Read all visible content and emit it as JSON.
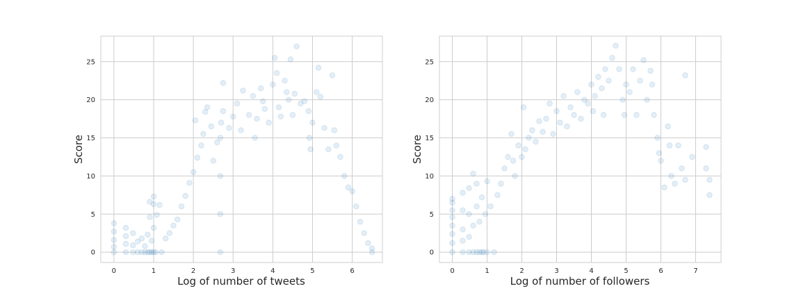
{
  "chart_data": [
    {
      "type": "scatter",
      "xlabel": "Log of number of tweets",
      "ylabel": "Score",
      "xlim": [
        -0.33,
        6.76
      ],
      "ylim": [
        -1.35,
        28.35
      ],
      "xticks": [
        0,
        1,
        2,
        3,
        4,
        5,
        6
      ],
      "yticks": [
        0,
        5,
        10,
        15,
        20,
        25
      ],
      "grid": true,
      "point_color": "#1f77b4",
      "point_alpha": 0.12,
      "points": [
        [
          0,
          0
        ],
        [
          0,
          0.7
        ],
        [
          0,
          1.6
        ],
        [
          0,
          2.7
        ],
        [
          0,
          3.8
        ],
        [
          0.3,
          0
        ],
        [
          0.3,
          1.1
        ],
        [
          0.3,
          2.1
        ],
        [
          0.3,
          3.2
        ],
        [
          0.48,
          0
        ],
        [
          0.48,
          0.9
        ],
        [
          0.48,
          2.5
        ],
        [
          0.6,
          0
        ],
        [
          0.6,
          1.4
        ],
        [
          0.7,
          0
        ],
        [
          0.7,
          1.8
        ],
        [
          0.78,
          0
        ],
        [
          0.78,
          0.8
        ],
        [
          0.85,
          0
        ],
        [
          0.85,
          2.3
        ],
        [
          0.9,
          0
        ],
        [
          0.9,
          4.6
        ],
        [
          0.9,
          6.6
        ],
        [
          0.95,
          0
        ],
        [
          0.95,
          1.5
        ],
        [
          1.0,
          0
        ],
        [
          1.0,
          6.3
        ],
        [
          1.0,
          7.3
        ],
        [
          1.0,
          3.2
        ],
        [
          1.05,
          0
        ],
        [
          1.08,
          4.9
        ],
        [
          1.15,
          6.2
        ],
        [
          1.2,
          0
        ],
        [
          1.3,
          1.8
        ],
        [
          1.4,
          2.5
        ],
        [
          1.5,
          3.5
        ],
        [
          1.6,
          4.3
        ],
        [
          1.7,
          6.0
        ],
        [
          1.8,
          7.4
        ],
        [
          1.9,
          9.1
        ],
        [
          2.0,
          10.5
        ],
        [
          2.05,
          17.3
        ],
        [
          2.1,
          12.4
        ],
        [
          2.2,
          14.0
        ],
        [
          2.25,
          15.5
        ],
        [
          2.3,
          18.4
        ],
        [
          2.35,
          19.0
        ],
        [
          2.45,
          16.5
        ],
        [
          2.5,
          12.0
        ],
        [
          2.6,
          14.4
        ],
        [
          2.68,
          0
        ],
        [
          2.68,
          5
        ],
        [
          2.68,
          10
        ],
        [
          2.68,
          15
        ],
        [
          2.7,
          17.0
        ],
        [
          2.75,
          18.5
        ],
        [
          2.75,
          22.2
        ],
        [
          2.9,
          16.3
        ],
        [
          3.0,
          17.8
        ],
        [
          3.1,
          19.5
        ],
        [
          3.2,
          16.0
        ],
        [
          3.25,
          21.2
        ],
        [
          3.4,
          18.0
        ],
        [
          3.5,
          20.5
        ],
        [
          3.55,
          15.0
        ],
        [
          3.6,
          17.5
        ],
        [
          3.7,
          21.5
        ],
        [
          3.75,
          19.8
        ],
        [
          3.8,
          18.8
        ],
        [
          3.9,
          17.0
        ],
        [
          4.0,
          22.0
        ],
        [
          4.05,
          25.5
        ],
        [
          4.1,
          23.5
        ],
        [
          4.15,
          19.0
        ],
        [
          4.2,
          17.8
        ],
        [
          4.3,
          22.5
        ],
        [
          4.35,
          21.0
        ],
        [
          4.4,
          20.0
        ],
        [
          4.45,
          25.3
        ],
        [
          4.5,
          18.0
        ],
        [
          4.55,
          20.8
        ],
        [
          4.6,
          27.0
        ],
        [
          4.7,
          19.5
        ],
        [
          4.8,
          19.8
        ],
        [
          4.9,
          18.5
        ],
        [
          4.92,
          15.0
        ],
        [
          4.95,
          13.5
        ],
        [
          5.0,
          17.0
        ],
        [
          5.1,
          21.0
        ],
        [
          5.15,
          24.2
        ],
        [
          5.2,
          20.4
        ],
        [
          5.3,
          16.3
        ],
        [
          5.4,
          13.5
        ],
        [
          5.5,
          23.2
        ],
        [
          5.55,
          16.0
        ],
        [
          5.6,
          14.0
        ],
        [
          5.7,
          12.5
        ],
        [
          5.8,
          10.0
        ],
        [
          5.9,
          8.5
        ],
        [
          6.0,
          8.0
        ],
        [
          6.1,
          6.0
        ],
        [
          6.2,
          4.0
        ],
        [
          6.3,
          2.5
        ],
        [
          6.4,
          1.2
        ],
        [
          6.5,
          0.5
        ],
        [
          6.5,
          0
        ]
      ]
    },
    {
      "type": "scatter",
      "xlabel": "Log of number of followers",
      "ylabel": "Score",
      "xlim": [
        -0.37,
        7.73
      ],
      "ylim": [
        -1.35,
        28.35
      ],
      "xticks": [
        0,
        1,
        2,
        3,
        4,
        5,
        6,
        7
      ],
      "yticks": [
        0,
        5,
        10,
        15,
        20,
        25
      ],
      "grid": true,
      "point_color": "#1f77b4",
      "point_alpha": 0.12,
      "points": [
        [
          0,
          0
        ],
        [
          0,
          1.2
        ],
        [
          0,
          2.4
        ],
        [
          0,
          3.5
        ],
        [
          0,
          4.6
        ],
        [
          0,
          5.5
        ],
        [
          0,
          6.5
        ],
        [
          0,
          7.0
        ],
        [
          0.3,
          0
        ],
        [
          0.3,
          1.5
        ],
        [
          0.3,
          3.0
        ],
        [
          0.3,
          5.5
        ],
        [
          0.3,
          7.8
        ],
        [
          0.48,
          0
        ],
        [
          0.48,
          2.0
        ],
        [
          0.48,
          5.0
        ],
        [
          0.48,
          8.4
        ],
        [
          0.6,
          0
        ],
        [
          0.6,
          3.5
        ],
        [
          0.6,
          10.3
        ],
        [
          0.7,
          0
        ],
        [
          0.7,
          6.0
        ],
        [
          0.7,
          9.0
        ],
        [
          0.78,
          0
        ],
        [
          0.78,
          4.0
        ],
        [
          0.85,
          0
        ],
        [
          0.85,
          7.2
        ],
        [
          0.9,
          0
        ],
        [
          0.95,
          5.0
        ],
        [
          1.0,
          0
        ],
        [
          1.0,
          9.3
        ],
        [
          1.1,
          6.0
        ],
        [
          1.2,
          0
        ],
        [
          1.3,
          7.5
        ],
        [
          1.4,
          9.0
        ],
        [
          1.5,
          11.0
        ],
        [
          1.6,
          12.5
        ],
        [
          1.7,
          15.5
        ],
        [
          1.75,
          12.0
        ],
        [
          1.8,
          10.0
        ],
        [
          1.9,
          14.0
        ],
        [
          2.0,
          12.5
        ],
        [
          2.05,
          19.0
        ],
        [
          2.1,
          13.5
        ],
        [
          2.2,
          15.0
        ],
        [
          2.3,
          16.0
        ],
        [
          2.4,
          14.5
        ],
        [
          2.5,
          17.2
        ],
        [
          2.6,
          15.8
        ],
        [
          2.7,
          17.5
        ],
        [
          2.8,
          19.5
        ],
        [
          2.9,
          15.5
        ],
        [
          3.0,
          18.5
        ],
        [
          3.1,
          17.0
        ],
        [
          3.2,
          20.5
        ],
        [
          3.3,
          16.5
        ],
        [
          3.4,
          19.0
        ],
        [
          3.5,
          18.0
        ],
        [
          3.6,
          21.0
        ],
        [
          3.7,
          17.5
        ],
        [
          3.8,
          20.0
        ],
        [
          3.9,
          19.5
        ],
        [
          4.0,
          22.0
        ],
        [
          4.05,
          18.5
        ],
        [
          4.1,
          20.5
        ],
        [
          4.2,
          23.0
        ],
        [
          4.3,
          21.5
        ],
        [
          4.35,
          18.0
        ],
        [
          4.4,
          24.0
        ],
        [
          4.5,
          22.5
        ],
        [
          4.6,
          25.5
        ],
        [
          4.7,
          27.1
        ],
        [
          4.8,
          24.0
        ],
        [
          4.9,
          20.0
        ],
        [
          4.95,
          18.0
        ],
        [
          5.0,
          22.0
        ],
        [
          5.1,
          21.0
        ],
        [
          5.2,
          24.0
        ],
        [
          5.3,
          18.0
        ],
        [
          5.4,
          22.5
        ],
        [
          5.5,
          25.2
        ],
        [
          5.6,
          20.0
        ],
        [
          5.7,
          23.8
        ],
        [
          5.75,
          22.0
        ],
        [
          5.8,
          18.0
        ],
        [
          5.9,
          15.0
        ],
        [
          5.95,
          13.0
        ],
        [
          6.0,
          12.0
        ],
        [
          6.1,
          8.5
        ],
        [
          6.2,
          16.5
        ],
        [
          6.25,
          14.0
        ],
        [
          6.3,
          10.0
        ],
        [
          6.4,
          9.0
        ],
        [
          6.5,
          14.0
        ],
        [
          6.6,
          11.0
        ],
        [
          6.7,
          23.2
        ],
        [
          6.7,
          9.5
        ],
        [
          6.9,
          12.5
        ],
        [
          7.3,
          13.8
        ],
        [
          7.3,
          11.0
        ],
        [
          7.4,
          9.5
        ],
        [
          7.4,
          7.5
        ]
      ]
    }
  ]
}
